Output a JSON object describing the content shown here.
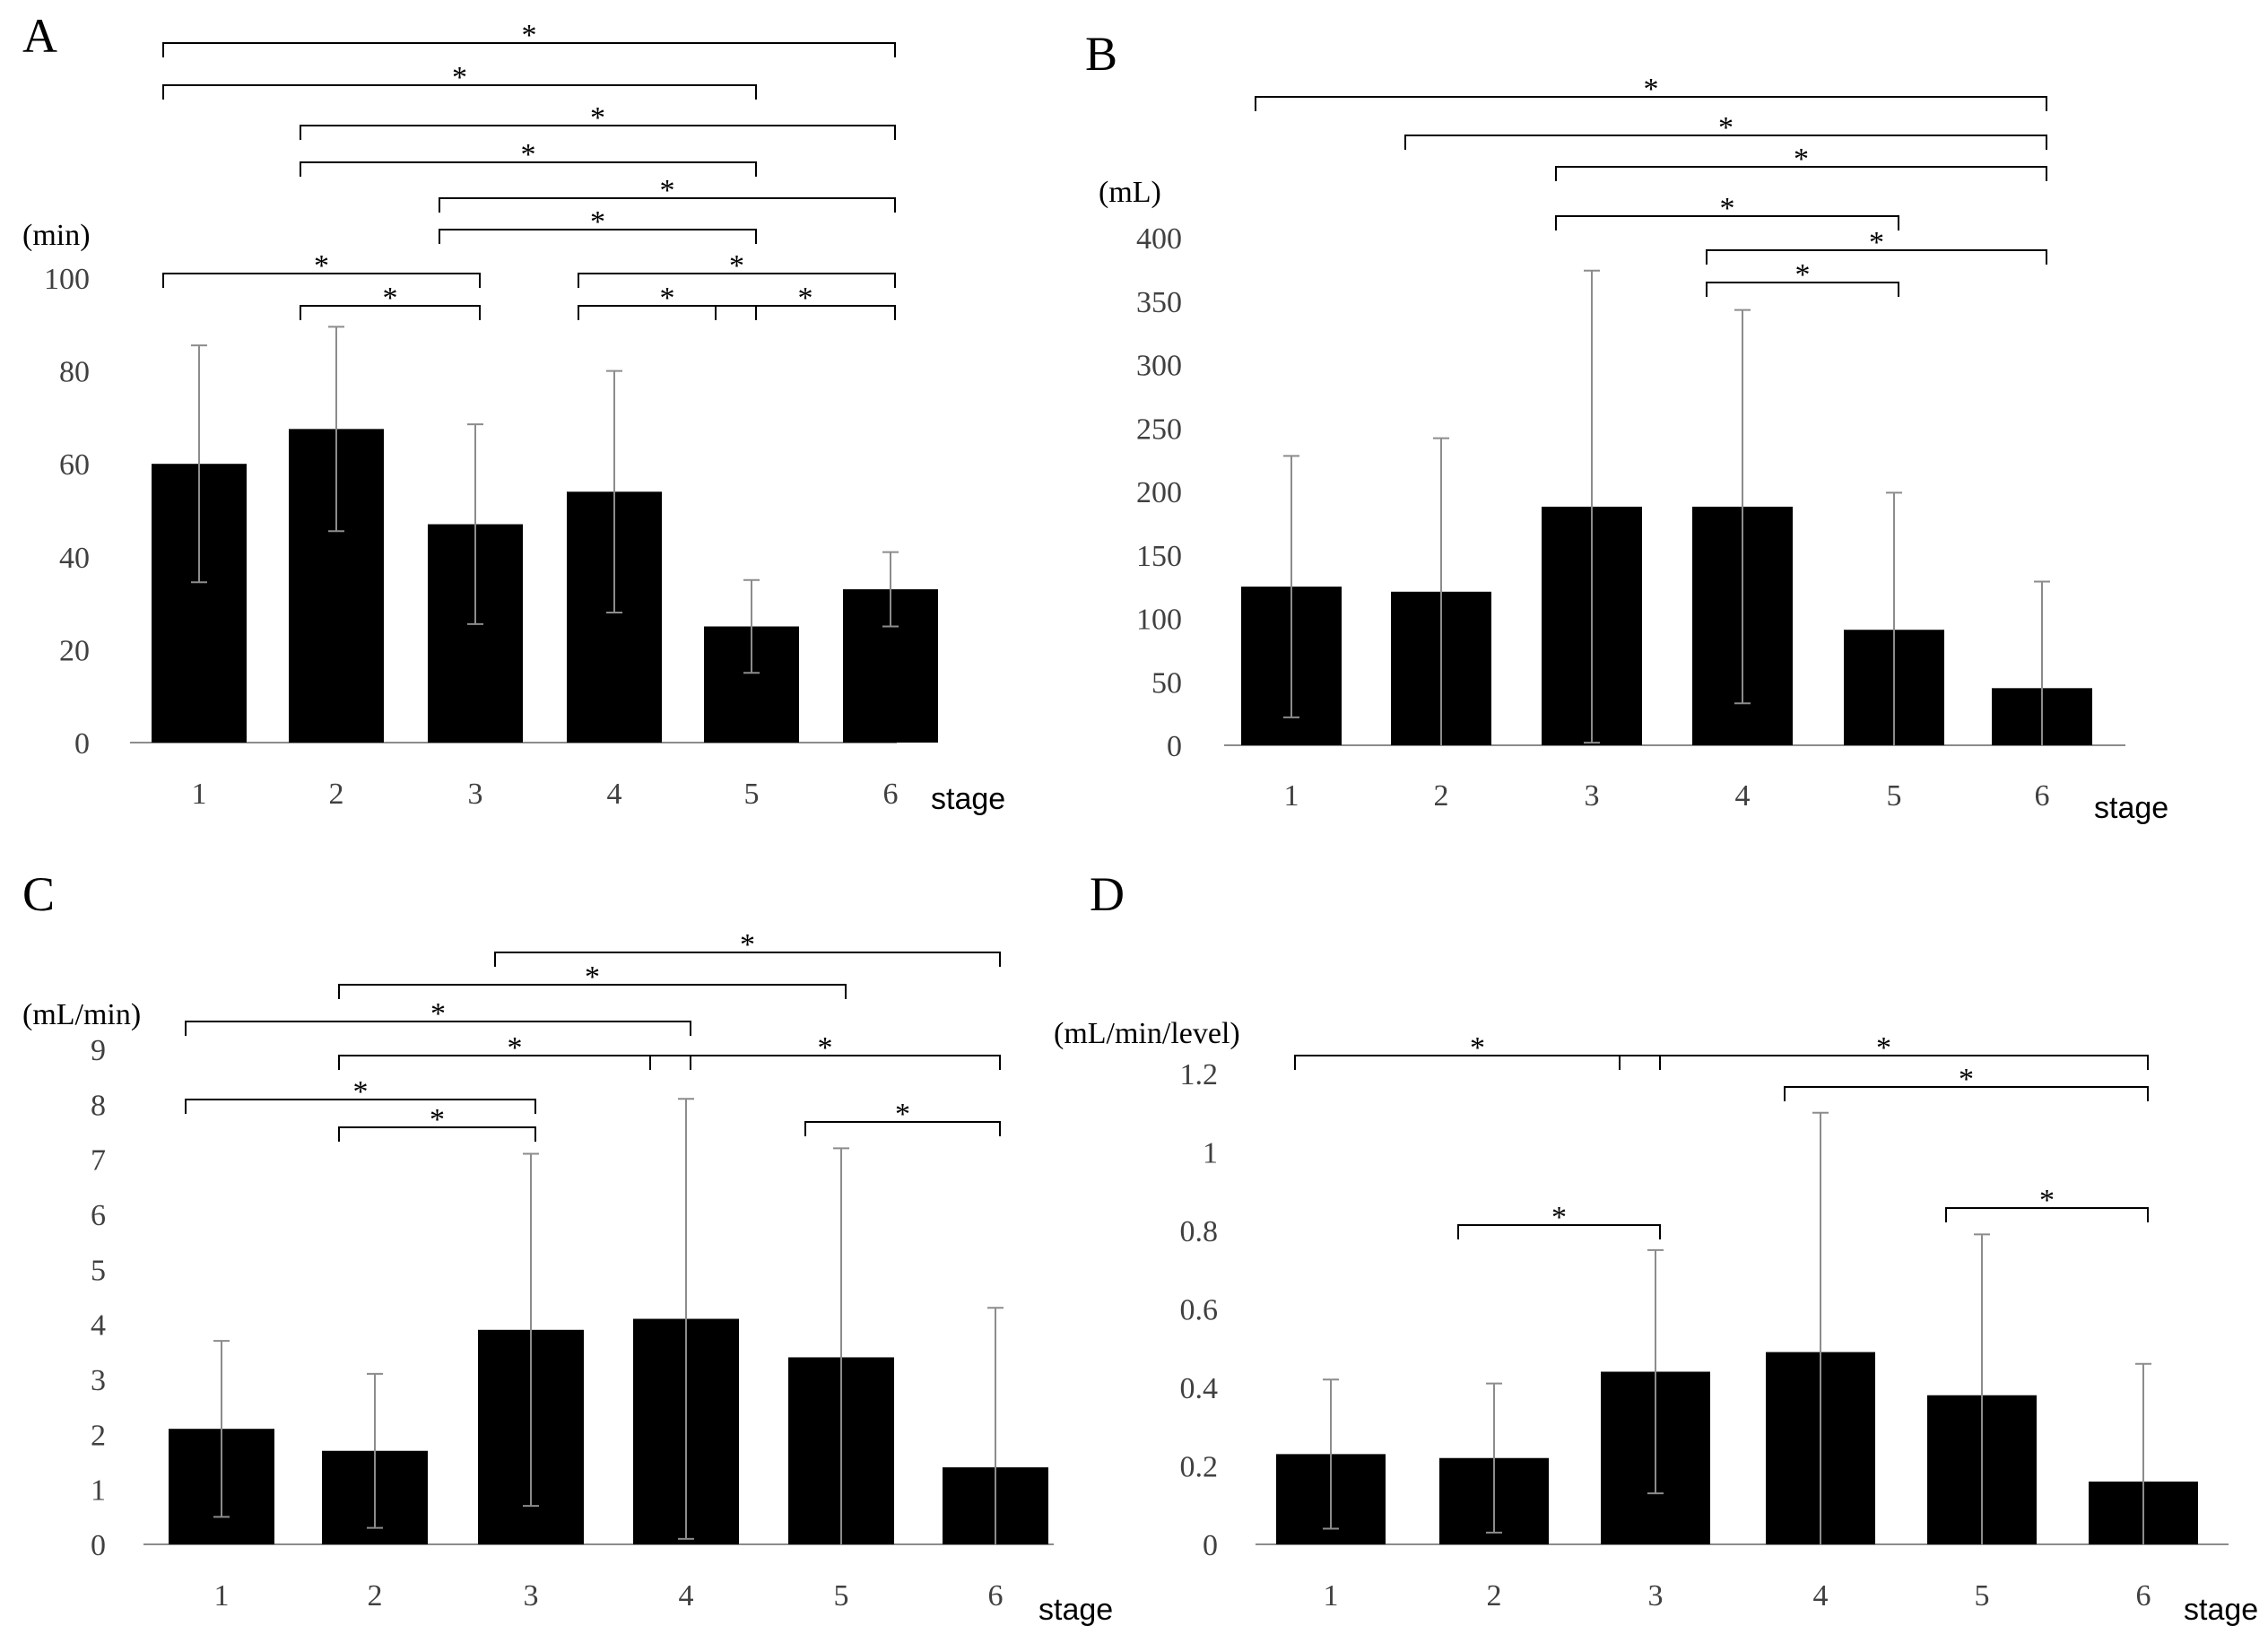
{
  "chart_data": [
    {
      "panel": "A",
      "type": "bar",
      "ylabel": "(min)",
      "xlabel": "stage",
      "categories": [
        "1",
        "2",
        "3",
        "4",
        "5",
        "6"
      ],
      "values": [
        60,
        67.5,
        47,
        54,
        25,
        33
      ],
      "errors": [
        25.5,
        22,
        21.5,
        26,
        10,
        8
      ],
      "ylim": [
        0,
        100
      ],
      "yticks": [
        0,
        20,
        40,
        60,
        80,
        100
      ],
      "ytick_labels": [
        "0",
        "20",
        "40",
        "60",
        "80",
        "100"
      ],
      "color": "#000000",
      "significance": [
        {
          "from": 1,
          "to": 6,
          "label": "*"
        },
        {
          "from": 1,
          "to": 5,
          "label": "*"
        },
        {
          "from": 2,
          "to": 6,
          "label": "*"
        },
        {
          "from": 2,
          "to": 5,
          "label": "*"
        },
        {
          "from": 3,
          "to": 6,
          "label": "*"
        },
        {
          "from": 3,
          "to": 5,
          "label": "*"
        },
        {
          "from": 1,
          "to": 3,
          "label": "*"
        },
        {
          "from": 4,
          "to": 6,
          "label": "*"
        },
        {
          "from": 2,
          "to": 3,
          "label": "*"
        },
        {
          "from": 4,
          "to": 5,
          "label": "*"
        },
        {
          "from": 5,
          "to": 6,
          "label": "*"
        }
      ]
    },
    {
      "panel": "B",
      "type": "bar",
      "ylabel": "(mL)",
      "xlabel": "stage",
      "categories": [
        "1",
        "2",
        "3",
        "4",
        "5",
        "6"
      ],
      "values": [
        125,
        121,
        188,
        188,
        91,
        45
      ],
      "errors": [
        103,
        121,
        186,
        155,
        108,
        84
      ],
      "ylim": [
        0,
        400
      ],
      "yticks": [
        0,
        50,
        100,
        150,
        200,
        250,
        300,
        350,
        400
      ],
      "ytick_labels": [
        "0",
        "50",
        "100",
        "150",
        "200",
        "250",
        "300",
        "350",
        "400"
      ],
      "color": "#000000",
      "significance": [
        {
          "from": 1,
          "to": 6,
          "label": "*"
        },
        {
          "from": 2,
          "to": 6,
          "label": "*"
        },
        {
          "from": 3,
          "to": 6,
          "label": "*"
        },
        {
          "from": 3,
          "to": 5,
          "label": "*"
        },
        {
          "from": 4,
          "to": 6,
          "label": "*"
        },
        {
          "from": 4,
          "to": 5,
          "label": "*"
        }
      ]
    },
    {
      "panel": "C",
      "type": "bar",
      "ylabel": "(mL/min)",
      "xlabel": "stage",
      "categories": [
        "1",
        "2",
        "3",
        "4",
        "5",
        "6"
      ],
      "values": [
        2.1,
        1.7,
        3.9,
        4.1,
        3.4,
        1.4
      ],
      "errors": [
        1.6,
        1.4,
        3.2,
        4.0,
        3.8,
        2.9
      ],
      "ylim": [
        0,
        9
      ],
      "yticks": [
        0,
        1,
        2,
        3,
        4,
        5,
        6,
        7,
        8,
        9
      ],
      "ytick_labels": [
        "0",
        "1",
        "2",
        "3",
        "4",
        "5",
        "6",
        "7",
        "8",
        "9"
      ],
      "color": "#000000",
      "significance": [
        {
          "from": 3,
          "to": 6,
          "label": "*"
        },
        {
          "from": 2,
          "to": 5,
          "label": "*"
        },
        {
          "from": 1,
          "to": 4,
          "label": "*"
        },
        {
          "from": 2,
          "to": 4,
          "label": "*"
        },
        {
          "from": 4,
          "to": 6,
          "label": "*"
        },
        {
          "from": 1,
          "to": 3,
          "label": "*"
        },
        {
          "from": 2,
          "to": 3,
          "label": "*"
        },
        {
          "from": 5,
          "to": 6,
          "label": "*"
        }
      ]
    },
    {
      "panel": "D",
      "type": "bar",
      "ylabel": "(mL/min/level)",
      "xlabel": "stage",
      "categories": [
        "1",
        "2",
        "3",
        "4",
        "5",
        "6"
      ],
      "values": [
        0.23,
        0.22,
        0.44,
        0.49,
        0.38,
        0.16
      ],
      "errors": [
        0.19,
        0.19,
        0.31,
        0.61,
        0.41,
        0.3
      ],
      "ylim": [
        0,
        1.2
      ],
      "yticks": [
        0,
        0.2,
        0.4,
        0.6,
        0.8,
        1.0,
        1.2
      ],
      "ytick_labels": [
        "0",
        "0.2",
        "0.4",
        "0.6",
        "0.8",
        "1",
        "1.2"
      ],
      "color": "#000000",
      "significance": [
        {
          "from": 1,
          "to": 3,
          "label": "*"
        },
        {
          "from": 3,
          "to": 6,
          "label": "*"
        },
        {
          "from": 4,
          "to": 6,
          "label": "*"
        },
        {
          "from": 2,
          "to": 3,
          "label": "*"
        },
        {
          "from": 5,
          "to": 6,
          "label": "*"
        }
      ]
    }
  ]
}
